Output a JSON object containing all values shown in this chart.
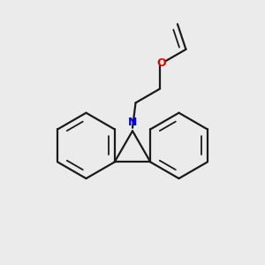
{
  "bg_color": "#ebebeb",
  "bond_color": "#1a1a1a",
  "N_color": "#0000ee",
  "O_color": "#ee0000",
  "line_width": 1.6,
  "figsize": [
    3.0,
    3.0
  ],
  "dpi": 100
}
